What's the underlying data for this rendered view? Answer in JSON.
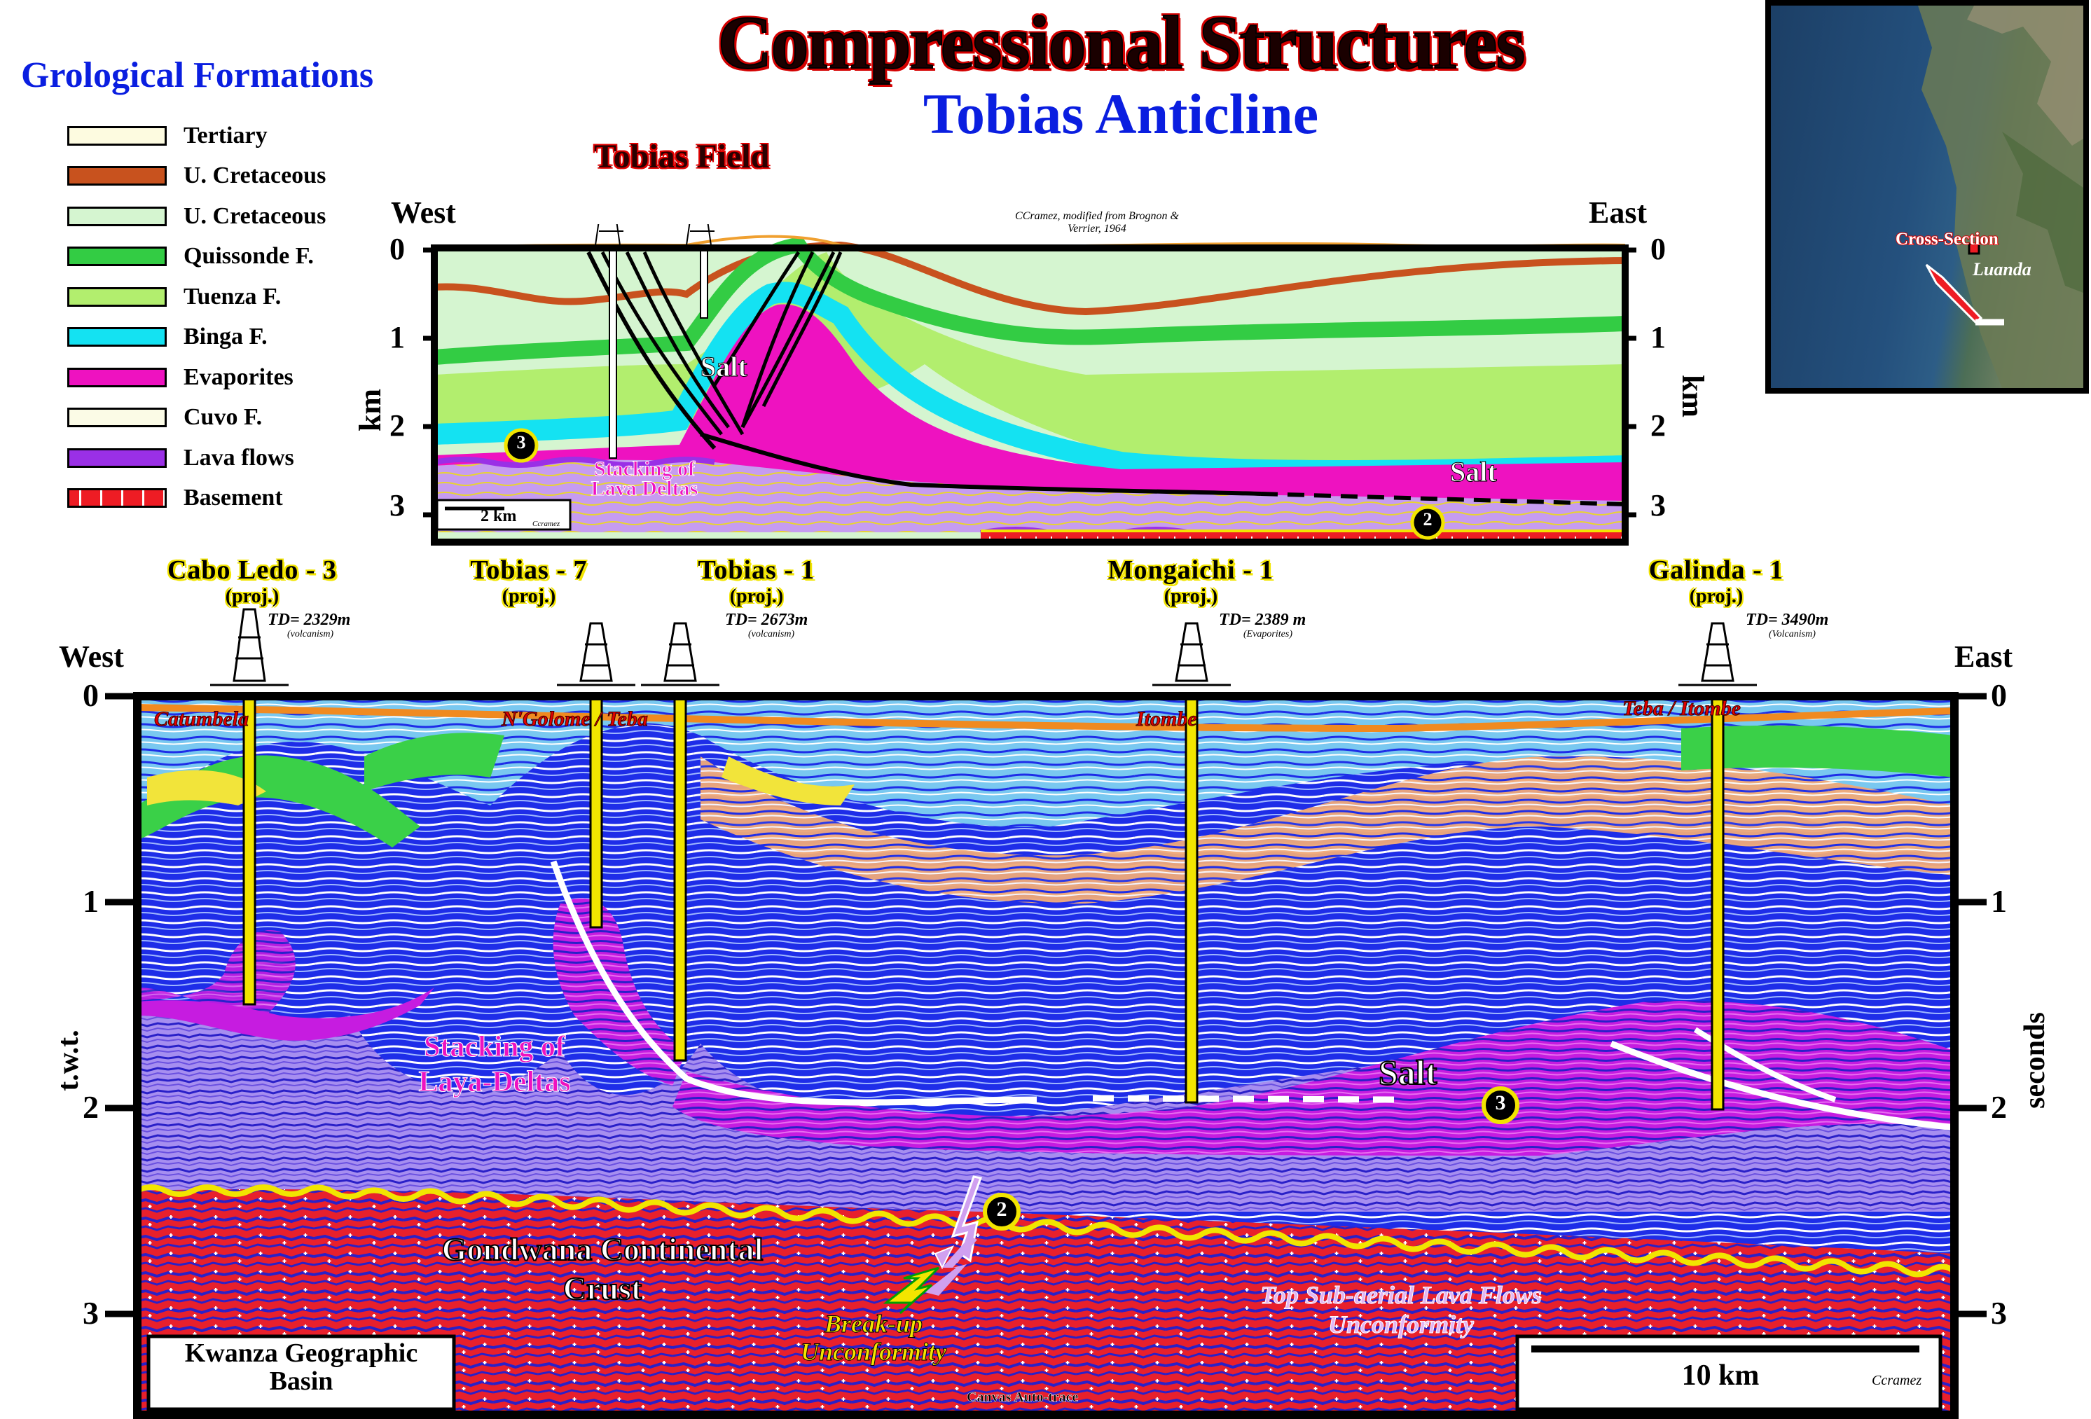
{
  "title": "Compressional Structures",
  "subtitle": "Tobias Anticline",
  "legend": {
    "title": "Grological Formations",
    "items": [
      {
        "label": "Tertiary",
        "color": "#fdfbe0"
      },
      {
        "label": "U. Cretaceous",
        "color": "#c8521e"
      },
      {
        "label": "U. Cretaceous",
        "color": "#d5f5d0"
      },
      {
        "label": "Quissonde F.",
        "color": "#33cc44"
      },
      {
        "label": "Tuenza F.",
        "color": "#b2ee6e"
      },
      {
        "label": "Binga F.",
        "color": "#14e2f2"
      },
      {
        "label": "Evaporites",
        "color": "#ee12c0"
      },
      {
        "label": "Cuvo F.",
        "color": "#fbfbe6"
      },
      {
        "label": "Lava flows",
        "color": "#9a30e6"
      },
      {
        "label": "Basement",
        "color": "#ee1c24"
      }
    ]
  },
  "top_section": {
    "field_label": "Tobias Field",
    "west": "West",
    "east": "East",
    "credit": "CCramez, modified from Brognon & Verrier, 1964",
    "axis_unit": "km",
    "ticks": [
      "0",
      "1",
      "2",
      "3"
    ],
    "salt_label_1": "Salt",
    "salt_label_2": "Salt",
    "stacking_label": "Stacking of Lava Deltas",
    "scale_label": "2 km",
    "scale_credit": "Ccramez",
    "marker_3": "3",
    "marker_2": "2"
  },
  "map": {
    "cross_section": "Cross-Section",
    "city": "Luanda"
  },
  "wells": [
    {
      "name": "Cabo Ledo - 3",
      "proj": "(proj.)",
      "td": "TD= 2329m",
      "td_note": "(volcanism)"
    },
    {
      "name": "Tobias - 7",
      "proj": "(proj.)",
      "td": "",
      "td_note": ""
    },
    {
      "name": "Tobias - 1",
      "proj": "(proj.)",
      "td": "TD= 2673m",
      "td_note": "(volcanism)"
    },
    {
      "name": "Mongaichi - 1",
      "proj": "(proj.)",
      "td": "TD= 2389 m",
      "td_note": "(Evaporites)"
    },
    {
      "name": "Galinda - 1",
      "proj": "(proj.)",
      "td": "TD= 3490m",
      "td_note": "(Volcanism)"
    }
  ],
  "bottom_section": {
    "west": "West",
    "east": "East",
    "ticks": [
      "0",
      "1",
      "2",
      "3"
    ],
    "left_axis": "t.w.t.",
    "right_axis": "seconds",
    "fields": [
      "Catumbela",
      "N'Golome / Teba",
      "Itombe",
      "Teba / Itombe"
    ],
    "stacking_label": "Stacking of Laya-Deltas",
    "salt_label": "Salt",
    "crust_label": "Gondwana Continental Crust",
    "breakup_label": "Break-up Unconformity",
    "lava_unconformity": "Top Sub-aerial Lava Flows Unconformity",
    "basin_label": "Kwanza Geographic Basin",
    "scale_label": "10 km",
    "scale_credit": "Ccramez",
    "canvas_credit": "Canvas Auto-trace",
    "marker_3": "3",
    "marker_2": "2"
  }
}
